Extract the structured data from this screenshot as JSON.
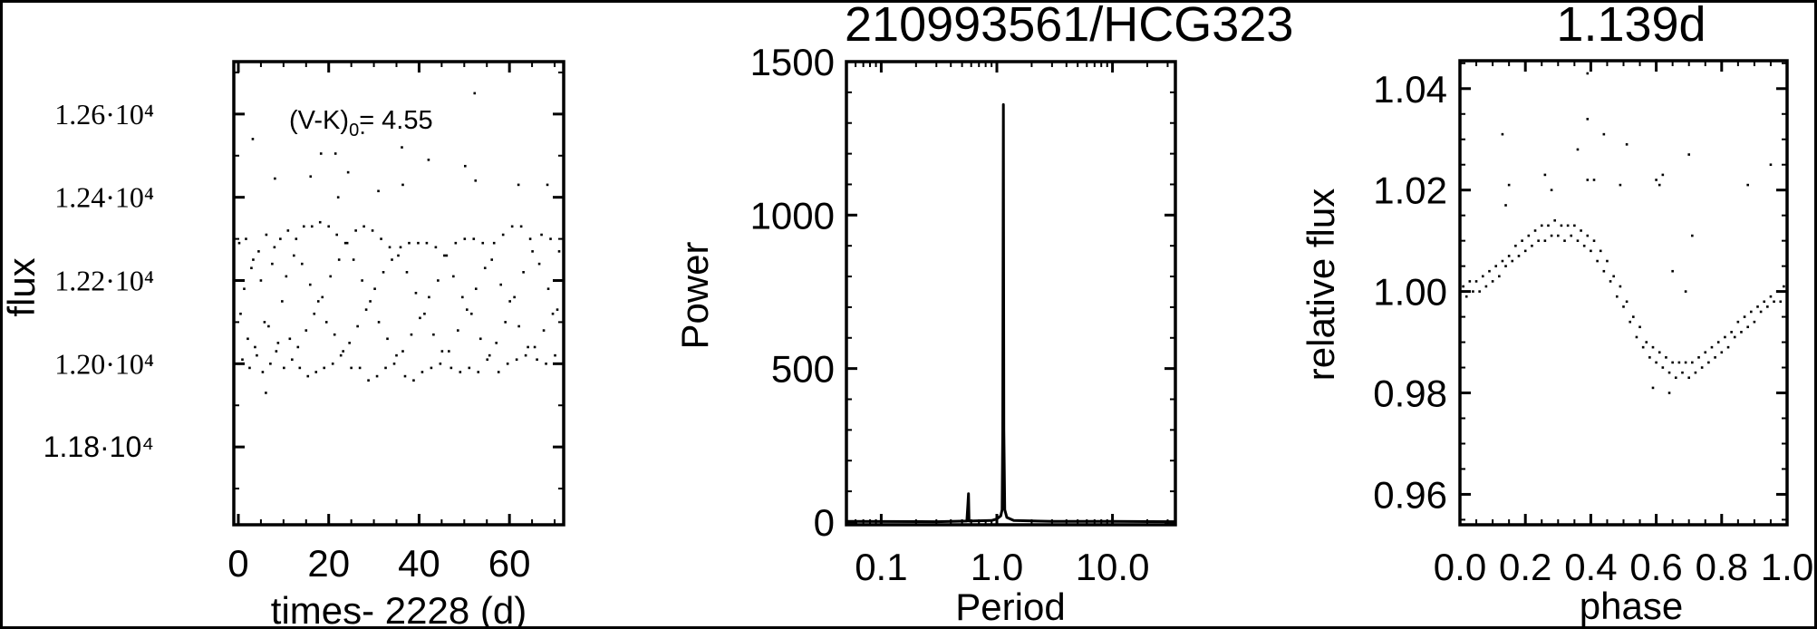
{
  "chart_data": [
    {
      "type": "scatter",
      "xlabel": "times- 2228 (d)",
      "ylabel": "flux",
      "annotation": {
        "main": "(V-K)",
        "subscript": "0",
        "rest": "= 4.55"
      },
      "xlim": [
        -1,
        72
      ],
      "ylim": [
        11613,
        12726
      ],
      "x_ticks": [
        0,
        20,
        40,
        60
      ],
      "x_tick_labels": [
        "0",
        "20",
        "40",
        "60"
      ],
      "y_ticks": [
        11800,
        12000,
        12200,
        12400,
        12600
      ],
      "y_tick_labels": [
        "1.18·10⁴",
        "1.20·10⁴",
        "1.22·10⁴",
        "1.24·10⁴",
        "1.26·10⁴"
      ],
      "color": "#000000",
      "points": [
        [
          0.2,
          12290
        ],
        [
          0.5,
          12120
        ],
        [
          0.9,
          12010
        ],
        [
          1.3,
          12180
        ],
        [
          1.7,
          12300
        ],
        [
          2.1,
          12060
        ],
        [
          2.5,
          11990
        ],
        [
          2.9,
          12230
        ],
        [
          3.3,
          12250
        ],
        [
          3.7,
          12040
        ],
        [
          4.1,
          12020
        ],
        [
          4.5,
          12270
        ],
        [
          5.0,
          12200
        ],
        [
          5.4,
          11980
        ],
        [
          5.8,
          12100
        ],
        [
          6.2,
          12310
        ],
        [
          6.7,
          12090
        ],
        [
          7.1,
          12000
        ],
        [
          7.5,
          12240
        ],
        [
          8.0,
          12280
        ],
        [
          8.4,
          12030
        ],
        [
          8.8,
          12050
        ],
        [
          9.3,
          12300
        ],
        [
          9.7,
          12150
        ],
        [
          10.1,
          11990
        ],
        [
          10.6,
          12210
        ],
        [
          11.0,
          12320
        ],
        [
          11.4,
          12060
        ],
        [
          11.9,
          12010
        ],
        [
          12.3,
          12260
        ],
        [
          12.8,
          12300
        ],
        [
          13.2,
          12040
        ],
        [
          13.6,
          11990
        ],
        [
          14.1,
          12240
        ],
        [
          14.5,
          12330
        ],
        [
          15.0,
          12080
        ],
        [
          15.4,
          11970
        ],
        [
          15.9,
          12190
        ],
        [
          16.3,
          12330
        ],
        [
          16.8,
          12120
        ],
        [
          17.2,
          11980
        ],
        [
          17.7,
          12150
        ],
        [
          18.1,
          12340
        ],
        [
          18.6,
          12160
        ],
        [
          19.0,
          11990
        ],
        [
          19.5,
          12100
        ],
        [
          20.0,
          12330
        ],
        [
          20.4,
          12210
        ],
        [
          20.9,
          12000
        ],
        [
          21.3,
          12070
        ],
        [
          21.8,
          12310
        ],
        [
          22.3,
          12250
        ],
        [
          22.7,
          12020
        ],
        [
          23.2,
          12030
        ],
        [
          23.7,
          12290
        ],
        [
          24.1,
          12290
        ],
        [
          24.6,
          12050
        ],
        [
          25.0,
          11990
        ],
        [
          25.5,
          12250
        ],
        [
          26.0,
          12320
        ],
        [
          26.4,
          12090
        ],
        [
          26.9,
          11990
        ],
        [
          27.4,
          12200
        ],
        [
          27.8,
          12330
        ],
        [
          28.3,
          12130
        ],
        [
          28.8,
          11960
        ],
        [
          29.2,
          12150
        ],
        [
          29.7,
          12320
        ],
        [
          30.2,
          12180
        ],
        [
          30.7,
          11970
        ],
        [
          31.1,
          12100
        ],
        [
          31.6,
          12300
        ],
        [
          32.1,
          12220
        ],
        [
          32.6,
          11990
        ],
        [
          33.0,
          12060
        ],
        [
          33.5,
          12280
        ],
        [
          34.0,
          12250
        ],
        [
          34.5,
          12000
        ],
        [
          35.0,
          12020
        ],
        [
          35.4,
          12260
        ],
        [
          35.9,
          12280
        ],
        [
          36.4,
          12030
        ],
        [
          36.9,
          11970
        ],
        [
          37.3,
          12220
        ],
        [
          37.8,
          12290
        ],
        [
          38.3,
          12070
        ],
        [
          38.8,
          11960
        ],
        [
          39.3,
          12170
        ],
        [
          39.8,
          12290
        ],
        [
          40.2,
          12110
        ],
        [
          40.7,
          11980
        ],
        [
          41.2,
          12120
        ],
        [
          41.7,
          12290
        ],
        [
          42.2,
          12160
        ],
        [
          42.7,
          11990
        ],
        [
          43.2,
          12070
        ],
        [
          43.7,
          12280
        ],
        [
          44.2,
          12200
        ],
        [
          44.7,
          12000
        ],
        [
          45.1,
          12030
        ],
        [
          45.6,
          12260
        ],
        [
          46.1,
          12260
        ],
        [
          46.6,
          12030
        ],
        [
          47.1,
          11990
        ],
        [
          47.6,
          12210
        ],
        [
          48.1,
          12290
        ],
        [
          48.6,
          12080
        ],
        [
          49.1,
          11980
        ],
        [
          49.6,
          12160
        ],
        [
          50.1,
          12300
        ],
        [
          50.6,
          12130
        ],
        [
          51.1,
          11990
        ],
        [
          51.6,
          12120
        ],
        [
          52.1,
          12300
        ],
        [
          52.6,
          12180
        ],
        [
          53.1,
          11980
        ],
        [
          53.6,
          12060
        ],
        [
          54.1,
          12290
        ],
        [
          54.6,
          12230
        ],
        [
          55.1,
          12010
        ],
        [
          55.6,
          12020
        ],
        [
          56.1,
          12250
        ],
        [
          56.6,
          12290
        ],
        [
          57.1,
          12050
        ],
        [
          57.6,
          11980
        ],
        [
          58.1,
          12190
        ],
        [
          58.6,
          12310
        ],
        [
          59.1,
          12100
        ],
        [
          59.6,
          12000
        ],
        [
          60.1,
          12150
        ],
        [
          60.6,
          12330
        ],
        [
          61.1,
          12160
        ],
        [
          61.6,
          12010
        ],
        [
          62.1,
          12090
        ],
        [
          62.6,
          12330
        ],
        [
          63.1,
          12220
        ],
        [
          63.6,
          12020
        ],
        [
          64.1,
          12040
        ],
        [
          64.6,
          12300
        ],
        [
          65.1,
          12270
        ],
        [
          65.6,
          12040
        ],
        [
          66.1,
          12010
        ],
        [
          66.6,
          12240
        ],
        [
          67.1,
          12310
        ],
        [
          67.6,
          12080
        ],
        [
          68.1,
          12000
        ],
        [
          68.6,
          12180
        ],
        [
          69.1,
          12300
        ],
        [
          69.6,
          12120
        ],
        [
          70.1,
          12020
        ],
        [
          70.6,
          12130
        ],
        [
          71.0,
          12270
        ],
        [
          3.2,
          12540
        ],
        [
          6.1,
          11930
        ],
        [
          8.1,
          12445
        ],
        [
          16.0,
          12450
        ],
        [
          18.3,
          12505
        ],
        [
          21.5,
          12505
        ],
        [
          22.1,
          12400
        ],
        [
          24.3,
          12460
        ],
        [
          27.5,
          12555
        ],
        [
          31.0,
          12415
        ],
        [
          36.2,
          12520
        ],
        [
          36.4,
          12430
        ],
        [
          42.1,
          12490
        ],
        [
          50.2,
          12475
        ],
        [
          52.3,
          12650
        ],
        [
          52.5,
          12440
        ],
        [
          62.0,
          12430
        ],
        [
          68.4,
          12430
        ]
      ]
    },
    {
      "type": "line",
      "title": "210993561/HCG323",
      "xlabel": "Period",
      "ylabel": "Power",
      "x_scale": "log",
      "xlim": [
        0.05,
        35
      ],
      "ylim": [
        -9,
        1500
      ],
      "x_ticks": [
        0.1,
        1,
        10
      ],
      "x_tick_labels": [
        "0.1",
        "1.0",
        "10.0"
      ],
      "y_ticks": [
        0,
        500,
        1000,
        1500
      ],
      "y_tick_labels": [
        "0",
        "500",
        "1000",
        "1500"
      ],
      "color": "#000000",
      "series": [
        {
          "x": [
            0.05,
            0.3,
            0.55,
            0.562,
            0.568,
            0.575,
            0.9,
            1.0,
            1.08,
            1.11,
            1.125,
            1.139,
            1.15,
            1.17,
            1.22,
            1.4,
            3,
            10,
            35
          ],
          "y": [
            2,
            1,
            3,
            60,
            92,
            3,
            5,
            10,
            20,
            40,
            300,
            1360,
            300,
            40,
            15,
            5,
            2,
            2,
            1
          ]
        }
      ]
    },
    {
      "type": "scatter",
      "title": "1.139d",
      "xlabel": "phase",
      "ylabel": "relative flux",
      "xlim": [
        0,
        1
      ],
      "ylim": [
        0.954,
        1.0455
      ],
      "x_ticks": [
        0,
        0.2,
        0.4,
        0.6,
        0.8,
        1.0
      ],
      "x_tick_labels": [
        "0.0",
        "0.2",
        "0.4",
        "0.6",
        "0.8",
        "1.0"
      ],
      "y_ticks": [
        0.96,
        0.98,
        1.0,
        1.02,
        1.04
      ],
      "y_tick_labels": [
        "0.96",
        "0.98",
        "1.00",
        "1.02",
        "1.04"
      ],
      "color": "#000000",
      "points": [
        [
          0.0,
          0.998
        ],
        [
          0.01,
          1.001
        ],
        [
          0.02,
          0.999
        ],
        [
          0.03,
          1.002
        ],
        [
          0.04,
          1.0
        ],
        [
          0.05,
          1.002
        ],
        [
          0.06,
          1.0
        ],
        [
          0.07,
          1.003
        ],
        [
          0.08,
          1.001
        ],
        [
          0.09,
          1.004
        ],
        [
          0.1,
          1.002
        ],
        [
          0.11,
          1.005
        ],
        [
          0.12,
          1.003
        ],
        [
          0.13,
          1.006
        ],
        [
          0.14,
          1.005
        ],
        [
          0.15,
          1.007
        ],
        [
          0.16,
          1.006
        ],
        [
          0.17,
          1.009
        ],
        [
          0.18,
          1.007
        ],
        [
          0.19,
          1.01
        ],
        [
          0.2,
          1.008
        ],
        [
          0.21,
          1.011
        ],
        [
          0.22,
          1.009
        ],
        [
          0.23,
          1.012
        ],
        [
          0.24,
          1.01
        ],
        [
          0.25,
          1.013
        ],
        [
          0.26,
          1.01
        ],
        [
          0.27,
          1.013
        ],
        [
          0.28,
          1.011
        ],
        [
          0.29,
          1.014
        ],
        [
          0.3,
          1.011
        ],
        [
          0.31,
          1.013
        ],
        [
          0.32,
          1.01
        ],
        [
          0.33,
          1.013
        ],
        [
          0.34,
          1.011
        ],
        [
          0.35,
          1.013
        ],
        [
          0.36,
          1.01
        ],
        [
          0.37,
          1.012
        ],
        [
          0.38,
          1.009
        ],
        [
          0.39,
          1.011
        ],
        [
          0.4,
          1.008
        ],
        [
          0.41,
          1.01
        ],
        [
          0.42,
          1.006
        ],
        [
          0.43,
          1.008
        ],
        [
          0.44,
          1.004
        ],
        [
          0.45,
          1.006
        ],
        [
          0.46,
          1.002
        ],
        [
          0.47,
          1.003
        ],
        [
          0.48,
          0.999
        ],
        [
          0.49,
          1.001
        ],
        [
          0.5,
          0.997
        ],
        [
          0.51,
          0.998
        ],
        [
          0.52,
          0.994
        ],
        [
          0.53,
          0.995
        ],
        [
          0.54,
          0.991
        ],
        [
          0.55,
          0.993
        ],
        [
          0.56,
          0.989
        ],
        [
          0.57,
          0.99
        ],
        [
          0.58,
          0.987
        ],
        [
          0.59,
          0.989
        ],
        [
          0.6,
          0.986
        ],
        [
          0.61,
          0.988
        ],
        [
          0.62,
          0.985
        ],
        [
          0.63,
          0.987
        ],
        [
          0.64,
          0.984
        ],
        [
          0.65,
          0.986
        ],
        [
          0.66,
          0.983
        ],
        [
          0.67,
          0.986
        ],
        [
          0.68,
          0.984
        ],
        [
          0.69,
          0.986
        ],
        [
          0.7,
          0.983
        ],
        [
          0.71,
          0.986
        ],
        [
          0.72,
          0.984
        ],
        [
          0.73,
          0.987
        ],
        [
          0.74,
          0.985
        ],
        [
          0.75,
          0.988
        ],
        [
          0.76,
          0.986
        ],
        [
          0.77,
          0.989
        ],
        [
          0.78,
          0.987
        ],
        [
          0.79,
          0.99
        ],
        [
          0.8,
          0.988
        ],
        [
          0.81,
          0.991
        ],
        [
          0.82,
          0.989
        ],
        [
          0.83,
          0.992
        ],
        [
          0.84,
          0.991
        ],
        [
          0.85,
          0.994
        ],
        [
          0.86,
          0.992
        ],
        [
          0.87,
          0.995
        ],
        [
          0.88,
          0.993
        ],
        [
          0.89,
          0.996
        ],
        [
          0.9,
          0.994
        ],
        [
          0.91,
          0.997
        ],
        [
          0.92,
          0.996
        ],
        [
          0.93,
          0.998
        ],
        [
          0.94,
          0.997
        ],
        [
          0.95,
          0.999
        ],
        [
          0.96,
          0.998
        ],
        [
          0.97,
          1.0
        ],
        [
          0.98,
          0.998
        ],
        [
          0.99,
          1.001
        ],
        [
          1.0,
          0.999
        ],
        [
          0.13,
          1.031
        ],
        [
          0.14,
          1.017
        ],
        [
          0.15,
          1.021
        ],
        [
          0.26,
          1.023
        ],
        [
          0.28,
          1.02
        ],
        [
          0.36,
          1.028
        ],
        [
          0.39,
          1.043
        ],
        [
          0.39,
          1.034
        ],
        [
          0.39,
          1.022
        ],
        [
          0.41,
          1.022
        ],
        [
          0.44,
          1.031
        ],
        [
          0.49,
          1.021
        ],
        [
          0.51,
          1.029
        ],
        [
          0.6,
          1.022
        ],
        [
          0.61,
          1.021
        ],
        [
          0.62,
          1.023
        ],
        [
          0.7,
          1.027
        ],
        [
          0.71,
          1.011
        ],
        [
          0.95,
          1.025
        ],
        [
          0.88,
          1.021
        ],
        [
          0.65,
          1.004
        ],
        [
          0.69,
          1.0
        ],
        [
          0.59,
          0.981
        ],
        [
          0.64,
          0.98
        ]
      ]
    }
  ]
}
